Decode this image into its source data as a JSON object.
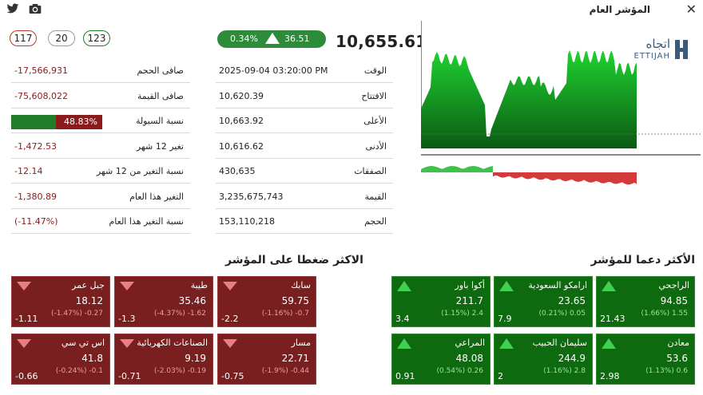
{
  "header": {
    "title": "المؤشر العام",
    "close_icon": "close-icon",
    "twitter_icon": "twitter-icon",
    "camera_icon": "camera-icon"
  },
  "counts": {
    "declining": "117",
    "unchanged": "20",
    "advancing": "123"
  },
  "index": {
    "value": "10,655.61",
    "change_points": "36.51",
    "change_pct": "0.34%"
  },
  "brand": {
    "arabic": "اتجاه",
    "latin": "ETTIJAH"
  },
  "market_info": [
    {
      "label": "الوقت",
      "value": "2025-09-04 03:20:00 PM"
    },
    {
      "label": "الافتتاح",
      "value": "10,620.39"
    },
    {
      "label": "الأعلى",
      "value": "10,663.92"
    },
    {
      "label": "الأدنى",
      "value": "10,616.62"
    },
    {
      "label": "الصفقات",
      "value": "430,635"
    },
    {
      "label": "القيمة",
      "value": "3,235,675,743"
    },
    {
      "label": "الحجم",
      "value": "153,110,218"
    }
  ],
  "flow_info": [
    {
      "label": "صافى الحجم",
      "value": "-17,566,931"
    },
    {
      "label": "صافى القيمة",
      "value": "-75,608,022"
    },
    {
      "label": "نسبة السيولة",
      "value": "48.83%",
      "fraction": 0.4883
    },
    {
      "label": "تغير 12 شهر",
      "value": "-1,472.53"
    },
    {
      "label": "نسبة التغير من 12 شهر",
      "value": "-12.14"
    },
    {
      "label": "التغير هذا العام",
      "value": "-1,380.89"
    },
    {
      "label": "نسبة التغير هذا العام",
      "value": "(-11.47%)"
    }
  ],
  "colors": {
    "up": "#0e6a0e",
    "down": "#7a1f1f",
    "accent_green": "#2e8b3a",
    "negative_text": "#8b1a1a"
  },
  "sections": {
    "supporting": "الأكثر دعما للمؤشر",
    "pressuring": "الاكثر ضغطا على المؤشر"
  },
  "supporting": [
    {
      "name": "الراجحي",
      "price": "94.85",
      "change": "(1.66%) 1.55",
      "points": "21.43"
    },
    {
      "name": "ارامكو السعودية",
      "price": "23.65",
      "change": "(0.21%) 0.05",
      "points": "7.9"
    },
    {
      "name": "أكوا باور",
      "price": "211.7",
      "change": "(1.15%) 2.4",
      "points": "3.4"
    },
    {
      "name": "معادن",
      "price": "53.6",
      "change": "(1.13%) 0.6",
      "points": "2.98"
    },
    {
      "name": "سليمان الحبيب",
      "price": "244.9",
      "change": "(1.16%) 2.8",
      "points": "2"
    },
    {
      "name": "المراعي",
      "price": "48.08",
      "change": "(0.54%) 0.26",
      "points": "0.91"
    }
  ],
  "pressuring": [
    {
      "name": "سابك",
      "price": "59.75",
      "change": "(-1.16%) -0.7",
      "points": "-2.2"
    },
    {
      "name": "طيبة",
      "price": "35.46",
      "change": "(-4.37%) -1.62",
      "points": "-1.3"
    },
    {
      "name": "جبل عمر",
      "price": "18.12",
      "change": "(-1.47%) -0.27",
      "points": "-1.11"
    },
    {
      "name": "مسار",
      "price": "22.71",
      "change": "(-1.9%) -0.44",
      "points": "-0.75"
    },
    {
      "name": "الصناعات الكهربائية",
      "price": "9.19",
      "change": "(-2.03%) -0.19",
      "points": "-0.71"
    },
    {
      "name": "اس تي سي",
      "price": "41.8",
      "change": "(-0.24%) -0.1",
      "points": "-0.66"
    }
  ]
}
